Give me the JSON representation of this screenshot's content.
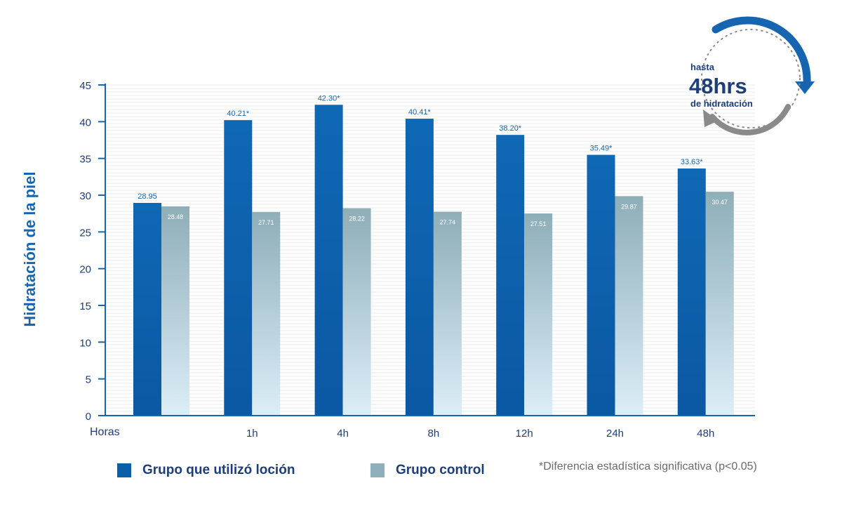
{
  "chart_data": {
    "type": "bar",
    "ylabel": "Hidratación de la piel",
    "xlabel": "Horas",
    "ylim": [
      0,
      45
    ],
    "yticks": [
      0,
      5,
      10,
      15,
      20,
      25,
      30,
      35,
      40,
      45
    ],
    "categories": [
      "",
      "1h",
      "4h",
      "8h",
      "12h",
      "24h",
      "48h"
    ],
    "series": [
      {
        "name": "Grupo que utilizó loción",
        "color": "#0b5ea8",
        "values": [
          28.95,
          40.21,
          42.3,
          40.41,
          38.2,
          35.49,
          33.63
        ],
        "labels": [
          "28.95",
          "40.21*",
          "42.30*",
          "40.41*",
          "38.20*",
          "35.49*",
          "33.63*"
        ]
      },
      {
        "name": "Grupo control",
        "color": "#8fb0ba",
        "values": [
          28.48,
          27.71,
          28.22,
          27.74,
          27.51,
          29.87,
          30.47
        ],
        "labels": [
          "28.48",
          "27.71",
          "28.22",
          "27.74",
          "27.51",
          "29.87",
          "30.47"
        ]
      }
    ],
    "grid": true,
    "legend_position": "bottom-left",
    "annotation": "*Diferencia estadística significativa (p<0.05)"
  },
  "badge": {
    "line1": "hasta",
    "line2": "48hrs",
    "line3": "de hidratación"
  },
  "colors": {
    "axis": "#1565b0",
    "text_primary": "#1c3e7a",
    "bar_lotion": "#0b5ea8",
    "bar_control": "#8fb0ba"
  }
}
